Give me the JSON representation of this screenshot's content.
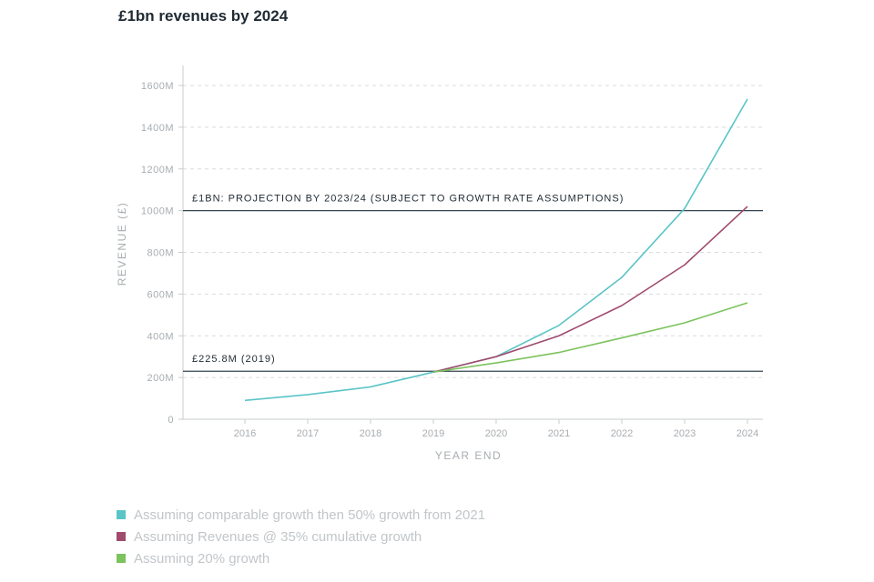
{
  "title": "£1bn revenues by 2024",
  "chart_data": {
    "type": "line",
    "title": "£1bn revenues by 2024",
    "xlabel": "YEAR END",
    "ylabel": "REVENUE (£)",
    "x": [
      2016,
      2017,
      2018,
      2019,
      2020,
      2021,
      2022,
      2023,
      2024
    ],
    "ylim": [
      0,
      1600
    ],
    "ytick_labels": [
      "0",
      "200M",
      "400M",
      "600M",
      "800M",
      "1000M",
      "1200M",
      "1400M",
      "1600M"
    ],
    "grid": true,
    "series": [
      {
        "name": "Assuming comparable growth then 50% growth from 2021",
        "color": "#5bc4c6",
        "x": [
          2016,
          2017,
          2018,
          2019,
          2020,
          2021,
          2022,
          2023,
          2024
        ],
        "values": [
          90,
          118,
          155,
          226,
          300,
          450,
          680,
          1010,
          1535
        ]
      },
      {
        "name": "Assuming Revenues @ 35% cumulative growth",
        "color": "#a04b6e",
        "x": [
          2019,
          2020,
          2021,
          2022,
          2023,
          2024
        ],
        "values": [
          226,
          300,
          400,
          545,
          740,
          1020
        ]
      },
      {
        "name": "Assuming 20% growth",
        "color": "#7cc35e",
        "x": [
          2019,
          2020,
          2021,
          2022,
          2023,
          2024
        ],
        "values": [
          226,
          270,
          320,
          390,
          462,
          558
        ]
      }
    ],
    "reference_lines": [
      {
        "value": 1000,
        "label": "£1BN: PROJECTION BY 2023/24 (SUBJECT TO GROWTH RATE ASSUMPTIONS)",
        "color": "#34454f"
      },
      {
        "value": 230,
        "label": "£225.8M (2019)",
        "color": "#34454f"
      }
    ],
    "legend_position": "bottom-left"
  }
}
